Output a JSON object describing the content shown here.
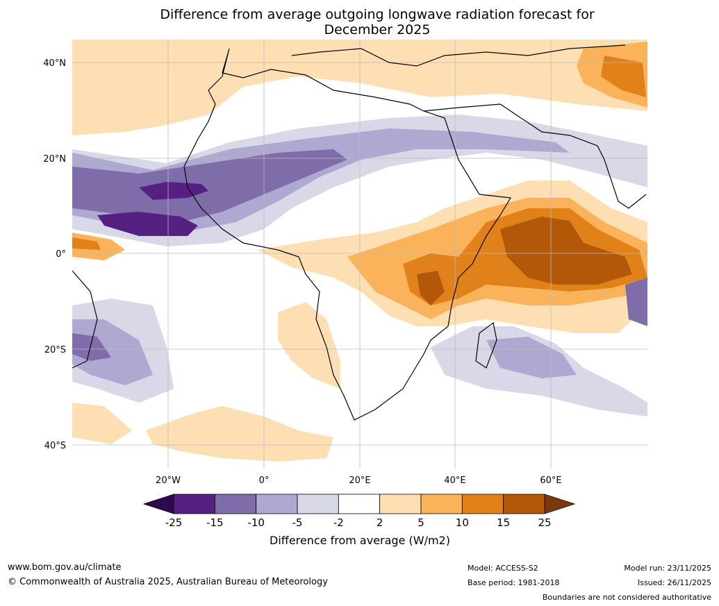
{
  "title": {
    "line1": "Difference from average outgoing longwave radiation forecast for",
    "line2": "December 2025"
  },
  "axes": {
    "lat_labels": [
      "40°N",
      "20°N",
      "0°",
      "20°S",
      "40°S"
    ],
    "lon_labels": [
      "20°W",
      "0°",
      "20°E",
      "40°E",
      "60°E"
    ]
  },
  "colorbar": {
    "title": "Difference from average (W/m2)",
    "levels": [
      "-25",
      "-15",
      "-10",
      "-5",
      "-2",
      "2",
      "5",
      "10",
      "15",
      "25"
    ],
    "colors": {
      "below_min": "#2d0a4e",
      "bins": [
        "#562083",
        "#7f6daa",
        "#afa8d0",
        "#d8d8e9",
        "#ffffff",
        "#fddfb3",
        "#fab35b",
        "#e08119",
        "#b35708"
      ],
      "above_max": "#7a3a09"
    }
  },
  "footer": {
    "website": "www.bom.gov.au/climate",
    "copyright": "© Commonwealth of Australia 2025, Australian Bureau of Meteorology",
    "model": "Model: ACCESS-S2",
    "base_period": "Base period: 1981-2018",
    "model_run": "Model run: 23/11/2025",
    "issued": "Issued: 26/11/2025",
    "disclaimer": "Boundaries are not considered authoritative"
  }
}
